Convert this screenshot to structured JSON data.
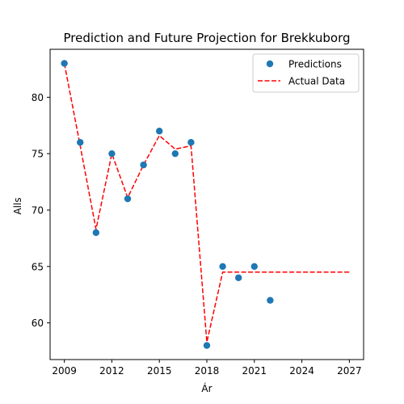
{
  "chart_data": {
    "type": "scatter",
    "title": "Prediction and Future Projection for Brekkuborg",
    "xlabel": "Ár",
    "ylabel": "Alls",
    "xlim": [
      2008.1,
      2027.9
    ],
    "ylim": [
      56.75,
      84.25
    ],
    "xticks": [
      2009,
      2012,
      2015,
      2018,
      2021,
      2024,
      2027
    ],
    "yticks": [
      60,
      65,
      70,
      75,
      80
    ],
    "grid": false,
    "legend_position": "top-right",
    "series": [
      {
        "name": "Predictions",
        "kind": "scatter",
        "color": "#1f77b4",
        "x": [
          2009,
          2010,
          2011,
          2012,
          2013,
          2014,
          2015,
          2016,
          2017,
          2018,
          2019,
          2020,
          2021,
          2022
        ],
        "y": [
          83,
          76,
          68,
          75,
          71,
          74,
          77,
          75,
          76,
          58,
          65,
          64,
          65,
          62
        ]
      },
      {
        "name": "Actual Data",
        "kind": "dashed-line",
        "color": "#ff0000",
        "x": [
          2009,
          2010,
          2011,
          2012,
          2013,
          2014,
          2015,
          2016,
          2017,
          2018,
          2019,
          2020,
          2021,
          2022,
          2023,
          2024,
          2025,
          2026,
          2027
        ],
        "y": [
          83,
          75.7,
          68.3,
          75,
          71.1,
          74,
          76.6,
          75.4,
          75.7,
          58.3,
          64.5,
          64.5,
          64.5,
          64.5,
          64.5,
          64.5,
          64.5,
          64.5,
          64.5
        ]
      }
    ]
  }
}
